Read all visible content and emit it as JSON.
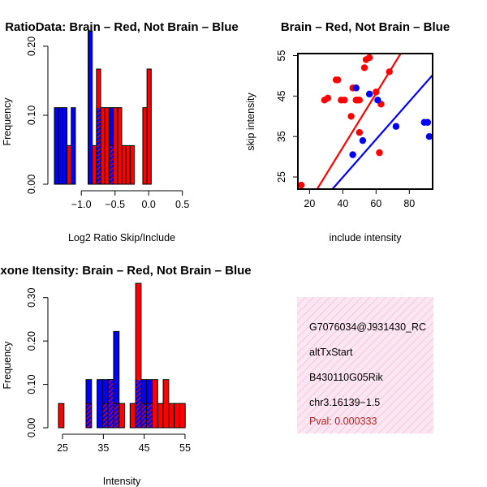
{
  "colors": {
    "red": "#ff0000",
    "blue": "#0000ff",
    "overlap": "#a020f0",
    "panel_bg": "#f7d7ea"
  },
  "chart_data": [
    {
      "id": "ratio_hist",
      "type": "bar",
      "title": "RatioData: Brain – Red, Not Brain – Blue",
      "xlabel": "Log2 Ratio Skip/Include",
      "ylabel": "Frequency",
      "xlim": [
        -1.4,
        0.6
      ],
      "ylim": [
        0,
        0.22
      ],
      "xticks": [
        -1.0,
        -0.5,
        0.0,
        0.5
      ],
      "xtick_labels": [
        "−1.0",
        "−0.5",
        "0.0",
        "0.5"
      ],
      "yticks": [
        0.0,
        0.1,
        0.2
      ],
      "ytick_labels": [
        "0.00",
        "0.10",
        "0.20"
      ],
      "bin_start": -1.4,
      "bin_width": 0.0625,
      "series": [
        {
          "name": "Not Brain",
          "color": "blue",
          "values": [
            0.111,
            0.111,
            0.111,
            0,
            0.111,
            0,
            0,
            0,
            0.222,
            0,
            0.111,
            0,
            0,
            0.111,
            0,
            0,
            0,
            0,
            0,
            0,
            0,
            0,
            0
          ]
        },
        {
          "name": "Brain",
          "color": "red",
          "values": [
            0,
            0,
            0,
            0.056,
            0,
            0,
            0,
            0,
            0,
            0.056,
            0.167,
            0.111,
            0.111,
            0.056,
            0.111,
            0.111,
            0.056,
            0.056,
            0.056,
            0,
            0,
            0.111,
            0.167
          ]
        }
      ]
    },
    {
      "id": "scatter",
      "type": "scatter",
      "title": "Brain – Red, Not Brain – Blue",
      "xlabel": "include intensity",
      "ylabel": "skip intensity",
      "xlim": [
        13,
        94
      ],
      "ylim": [
        22,
        55.5
      ],
      "xticks": [
        20,
        40,
        60,
        80
      ],
      "xtick_labels": [
        "20",
        "40",
        "60",
        "80"
      ],
      "yticks": [
        25,
        35,
        45,
        55
      ],
      "ytick_labels": [
        "25",
        "35",
        "45",
        "55"
      ],
      "series": [
        {
          "name": "Brain",
          "color": "red",
          "points": [
            [
              15,
              23
            ],
            [
              29,
              44
            ],
            [
              31,
              44.5
            ],
            [
              36,
              49
            ],
            [
              37,
              49
            ],
            [
              39,
              44
            ],
            [
              41,
              44
            ],
            [
              45,
              40
            ],
            [
              46,
              47
            ],
            [
              48,
              44
            ],
            [
              49,
              44
            ],
            [
              50,
              44
            ],
            [
              50,
              36
            ],
            [
              53,
              52
            ],
            [
              54,
              54
            ],
            [
              56,
              54.5
            ],
            [
              60,
              46
            ],
            [
              62,
              31
            ],
            [
              63,
              43
            ],
            [
              68,
              51
            ]
          ],
          "fit": [
            [
              13,
              14.3
            ],
            [
              94,
              68.3
            ]
          ]
        },
        {
          "name": "Not Brain",
          "color": "blue",
          "points": [
            [
              46,
              30.5
            ],
            [
              48,
              47
            ],
            [
              52,
              34
            ],
            [
              56,
              45.5
            ],
            [
              61,
              44
            ],
            [
              72,
              37.5
            ],
            [
              89,
              38.5
            ],
            [
              91,
              38.5
            ],
            [
              92,
              35
            ]
          ],
          "fit": [
            [
              13,
              12.3
            ],
            [
              94,
              50.2
            ]
          ]
        }
      ]
    },
    {
      "id": "intensity_hist",
      "type": "bar",
      "title": "Exone Itensity: Brain – Red, Not Brain – Blue",
      "xlabel": "Intensity",
      "ylabel": "Frequency",
      "xlim": [
        23,
        56
      ],
      "ylim": [
        0,
        0.35
      ],
      "xticks": [
        25,
        35,
        45,
        55
      ],
      "xtick_labels": [
        "25",
        "35",
        "45",
        "55"
      ],
      "yticks": [
        0.0,
        0.1,
        0.2,
        0.3
      ],
      "ytick_labels": [
        "0.00",
        "0.10",
        "0.20",
        "0.30"
      ],
      "bin_start": 24,
      "bin_width": 1.35,
      "series": [
        {
          "name": "Not Brain",
          "color": "blue",
          "values": [
            0,
            0,
            0,
            0,
            0,
            0.111,
            0,
            0.111,
            0.111,
            0.111,
            0.222,
            0,
            0,
            0,
            0.111,
            0.111,
            0.111,
            0,
            0,
            0,
            0,
            0,
            0
          ]
        },
        {
          "name": "Brain",
          "color": "red",
          "values": [
            0.056,
            0,
            0,
            0,
            0,
            0.056,
            0,
            0,
            0.056,
            0.111,
            0.056,
            0.056,
            0,
            0.056,
            0.333,
            0.056,
            0.056,
            0.111,
            0.056,
            0.111,
            0.056,
            0.056,
            0.056
          ]
        }
      ]
    }
  ],
  "info_panel": {
    "id": "G7076034@J931430_RC",
    "event": "altTxStart",
    "gene": "B430110G05Rik",
    "location": "chr3.16139−1.5",
    "pval": "Pval: 0.000333"
  }
}
